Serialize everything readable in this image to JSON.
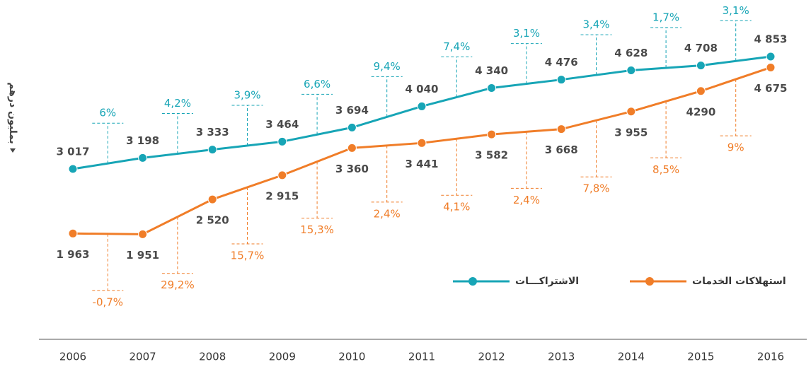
{
  "chart_data": {
    "type": "line",
    "y_label": "بمليون درهم",
    "categories": [
      "2006",
      "2007",
      "2008",
      "2009",
      "2010",
      "2011",
      "2012",
      "2013",
      "2014",
      "2015",
      "2016"
    ],
    "ylim": [
      500,
      5500
    ],
    "series": [
      {
        "name": "الاشتراكـــات",
        "color": "#17a5b6",
        "values": [
          3017,
          3198,
          3333,
          3464,
          3694,
          4040,
          4340,
          4476,
          4628,
          4708,
          4853
        ],
        "value_labels": [
          "3 017",
          "3 198",
          "3 333",
          "3 464",
          "3 694",
          "4 040",
          "4 340",
          "4 476",
          "4 628",
          "4 708",
          "4 853"
        ],
        "growth_labels": [
          "6%",
          "4,2%",
          "3,9%",
          "6,6%",
          "9,4%",
          "7,4%",
          "3,1%",
          "3,4%",
          "1,7%",
          "3,1%"
        ]
      },
      {
        "name": "استهلاكات الخدمات",
        "color": "#f07d28",
        "values": [
          1963,
          1951,
          2520,
          2915,
          3360,
          3441,
          3582,
          3668,
          3955,
          4290,
          4675
        ],
        "value_labels": [
          "1 963",
          "1 951",
          "2 520",
          "2 915",
          "3 360",
          "3 441",
          "3 582",
          "3 668",
          "3 955",
          "4290",
          "4 675"
        ],
        "growth_labels": [
          "-0,7%",
          "29,2%",
          "15,7%",
          "15,3%",
          "2,4%",
          "4,1%",
          "2,4%",
          "7,8%",
          "8,5%",
          "9%"
        ]
      }
    ]
  }
}
